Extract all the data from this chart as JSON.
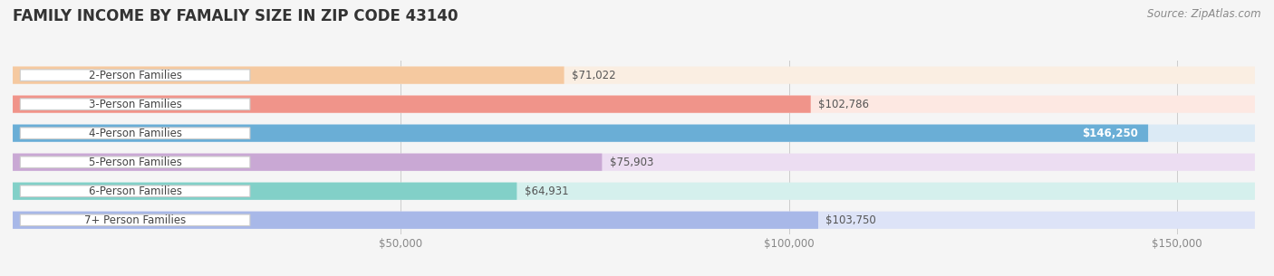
{
  "title": "FAMILY INCOME BY FAMALIY SIZE IN ZIP CODE 43140",
  "source": "Source: ZipAtlas.com",
  "categories": [
    "2-Person Families",
    "3-Person Families",
    "4-Person Families",
    "5-Person Families",
    "6-Person Families",
    "7+ Person Families"
  ],
  "values": [
    71022,
    102786,
    146250,
    75903,
    64931,
    103750
  ],
  "bar_colors": [
    "#f5c9a0",
    "#f0948a",
    "#6aaed6",
    "#c9a8d4",
    "#82d0c8",
    "#a8b8e8"
  ],
  "bar_bg_colors": [
    "#faeee2",
    "#fde8e2",
    "#dbeaf5",
    "#ecddf2",
    "#d5f0ed",
    "#dde3f7"
  ],
  "value_labels": [
    "$71,022",
    "$102,786",
    "$146,250",
    "$75,903",
    "$64,931",
    "$103,750"
  ],
  "label_inside": [
    false,
    false,
    true,
    false,
    false,
    false
  ],
  "xlim": [
    0,
    160000
  ],
  "xticks": [
    0,
    50000,
    100000,
    150000
  ],
  "xticklabels": [
    "",
    "$50,000",
    "$100,000",
    "$150,000"
  ],
  "background_color": "#f5f5f5",
  "title_fontsize": 12,
  "label_fontsize": 8.5,
  "source_fontsize": 8.5
}
